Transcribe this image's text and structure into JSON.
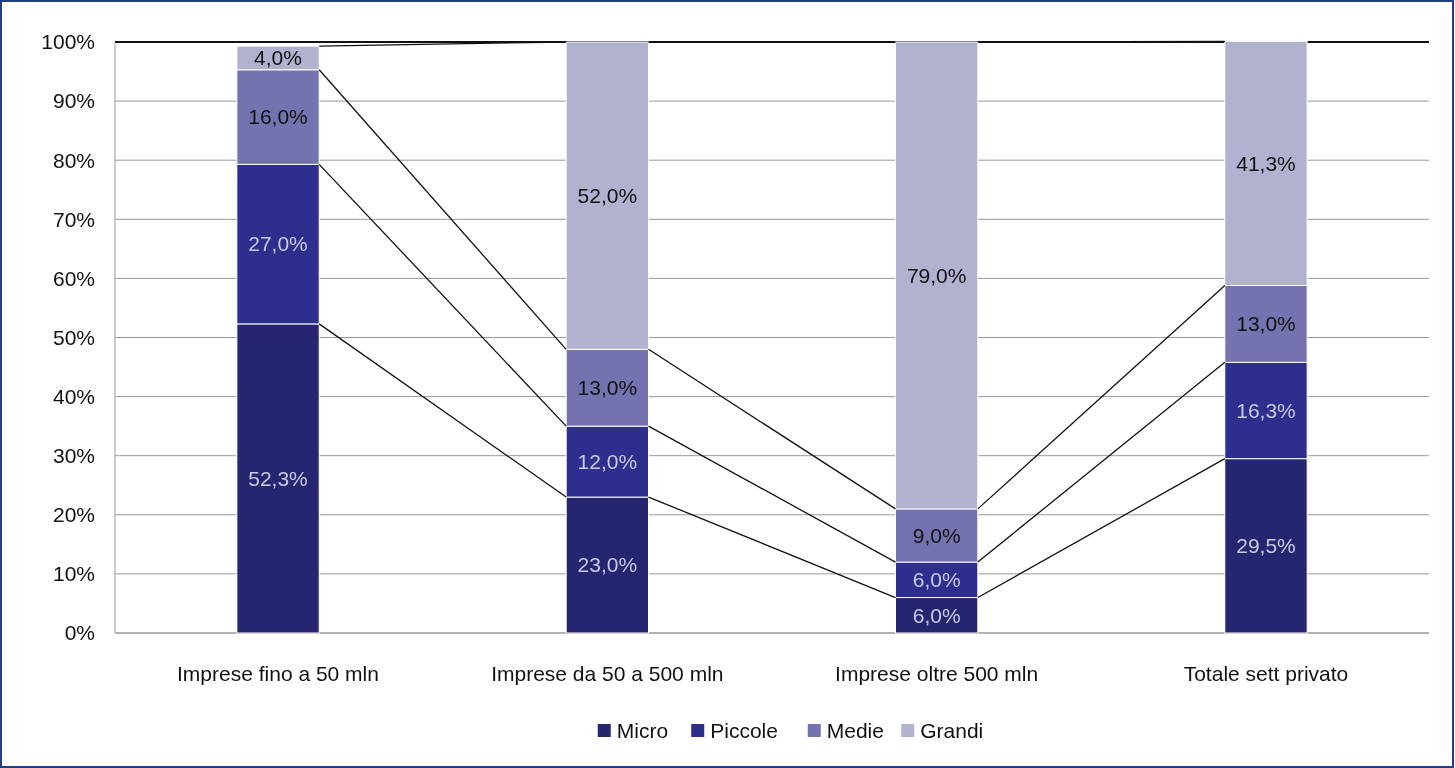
{
  "chart_data": {
    "type": "bar",
    "stacked": true,
    "categories": [
      "Imprese fino a 50 mln",
      "Imprese da 50 a 500 mln",
      "Imprese oltre 500 mln",
      "Totale sett privato"
    ],
    "series": [
      {
        "name": "Micro",
        "color": "#25266f",
        "values": [
          52.3,
          23.0,
          6.0,
          29.5
        ],
        "value_labels": [
          "52,3%",
          "23,0%",
          "6,0%",
          "29,5%"
        ]
      },
      {
        "name": "Piccole",
        "color": "#2e2e8c",
        "values": [
          27.0,
          12.0,
          6.0,
          16.3
        ],
        "value_labels": [
          "27,0%",
          "12,0%",
          "6,0%",
          "16,3%"
        ]
      },
      {
        "name": "Medie",
        "color": "#7473b0",
        "values": [
          16.0,
          13.0,
          9.0,
          13.0
        ],
        "value_labels": [
          "16,0%",
          "13,0%",
          "9,0%",
          "13,0%"
        ]
      },
      {
        "name": "Grandi",
        "color": "#b1b1d0",
        "values": [
          4.0,
          52.0,
          79.0,
          41.3
        ],
        "value_labels": [
          "4,0%",
          "52,0%",
          "79,0%",
          "41,3%"
        ]
      }
    ],
    "ylim": [
      0,
      100
    ],
    "yticks": [
      {
        "value": 0,
        "label": "0%"
      },
      {
        "value": 10,
        "label": "10%"
      },
      {
        "value": 20,
        "label": "20%"
      },
      {
        "value": 30,
        "label": "30%"
      },
      {
        "value": 40,
        "label": "40%"
      },
      {
        "value": 50,
        "label": "50%"
      },
      {
        "value": 60,
        "label": "60%"
      },
      {
        "value": 70,
        "label": "70%"
      },
      {
        "value": 80,
        "label": "80%"
      },
      {
        "value": 90,
        "label": "90%"
      },
      {
        "value": 100,
        "label": "100%"
      }
    ],
    "grid": "y",
    "legend": "bottom"
  }
}
